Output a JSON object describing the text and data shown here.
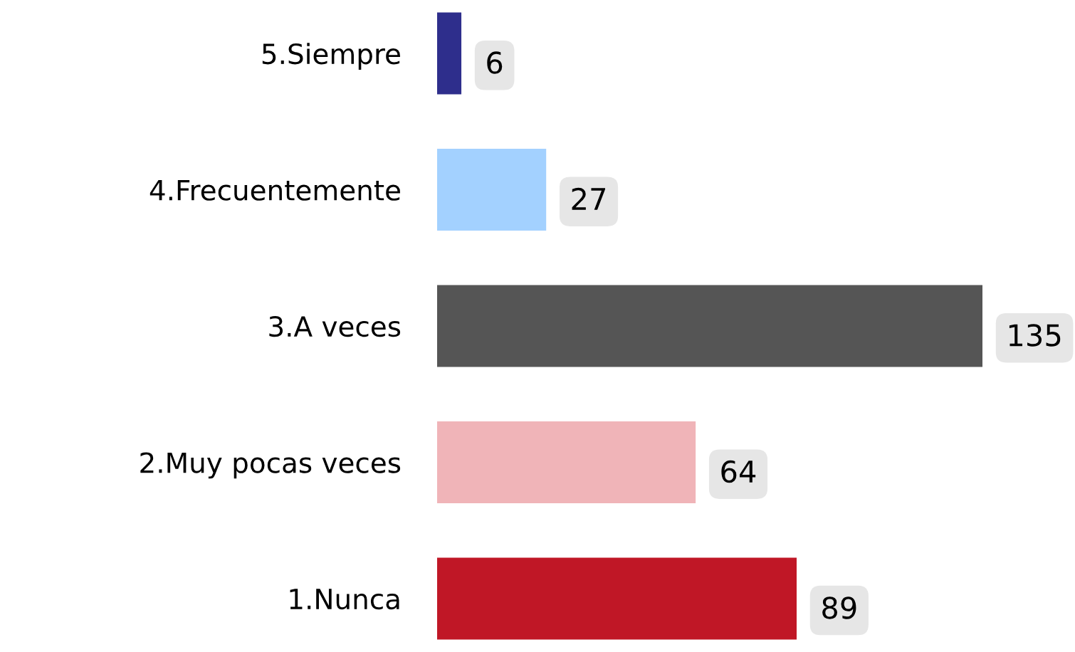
{
  "chart_data": {
    "type": "bar",
    "orientation": "horizontal",
    "data_labels": true,
    "categories": [
      "5.Siempre",
      "4.Frecuentemente",
      "3.A veces",
      "2.Muy pocas veces",
      "1.Nunca"
    ],
    "values": [
      6,
      27,
      135,
      64,
      89
    ],
    "colors": [
      "#2e2e8c",
      "#a3d1ff",
      "#555555",
      "#f0b4b8",
      "#c01726"
    ]
  }
}
